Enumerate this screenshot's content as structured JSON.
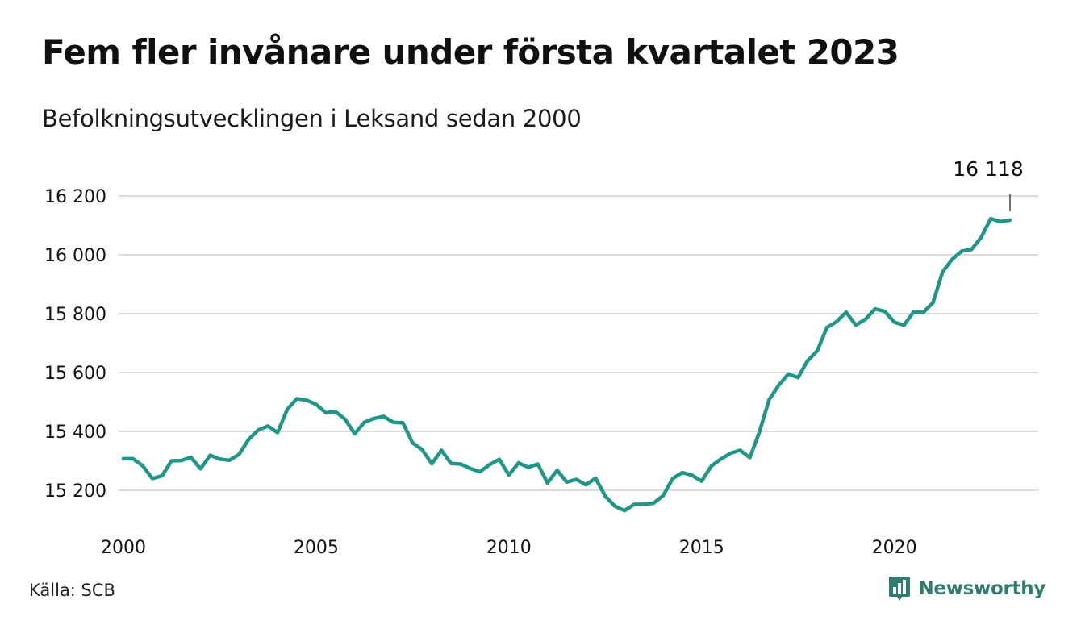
{
  "header": {
    "title": "Fem fler invånare under första kvartalet 2023",
    "subtitle": "Befolkningsutvecklingen i Leksand sedan 2000"
  },
  "footer": {
    "source": "Källa: SCB",
    "brand": "Newsworthy",
    "brand_icon": "bar-chart-speech-bubble-icon"
  },
  "colors": {
    "line": "#1f9688",
    "grid": "#dcdcdc",
    "brand": "#2e7d6e"
  },
  "chart_data": {
    "type": "line",
    "title": "Fem fler invånare under första kvartalet 2023",
    "subtitle": "Befolkningsutvecklingen i Leksand sedan 2000",
    "xlabel": "",
    "ylabel": "",
    "x_ticks": [
      2000,
      2005,
      2010,
      2015,
      2020
    ],
    "y_ticks": [
      15200,
      15400,
      15600,
      15800,
      16000,
      16200
    ],
    "y_tick_labels": [
      "15 200",
      "15 400",
      "15 600",
      "15 800",
      "16 000",
      "16 200"
    ],
    "x_tick_labels": [
      "2000",
      "2005",
      "2010",
      "2015",
      "2020"
    ],
    "xlim": [
      2000,
      2023.5
    ],
    "ylim": [
      15120,
      16230
    ],
    "grid": true,
    "legend": "none",
    "annotation": {
      "x": 2023.0,
      "value": 16118,
      "label": "16 118"
    },
    "series": [
      {
        "x": [
          2000.0,
          2000.25,
          2000.5,
          2000.75,
          2001.0,
          2001.25,
          2001.5,
          2001.75,
          2002.0,
          2002.25,
          2002.5,
          2002.75,
          2003.0,
          2003.25,
          2003.5,
          2003.75,
          2004.0,
          2004.25,
          2004.5,
          2004.75,
          2005.0,
          2005.25,
          2005.5,
          2005.75,
          2006.0,
          2006.25,
          2006.5,
          2006.75,
          2007.0,
          2007.25,
          2007.5,
          2007.75,
          2008.0,
          2008.25,
          2008.5,
          2008.75,
          2009.0,
          2009.25,
          2009.5,
          2009.75,
          2010.0,
          2010.25,
          2010.5,
          2010.75,
          2011.0,
          2011.25,
          2011.5,
          2011.75,
          2012.0,
          2012.25,
          2012.5,
          2012.75,
          2013.0,
          2013.25,
          2013.5,
          2013.75,
          2014.0,
          2014.25,
          2014.5,
          2014.75,
          2015.0,
          2015.25,
          2015.5,
          2015.75,
          2016.0,
          2016.25,
          2016.5,
          2016.75,
          2017.0,
          2017.25,
          2017.5,
          2017.75,
          2018.0,
          2018.25,
          2018.5,
          2018.75,
          2019.0,
          2019.25,
          2019.5,
          2019.75,
          2020.0,
          2020.25,
          2020.5,
          2020.75,
          2021.0,
          2021.25,
          2021.5,
          2021.75,
          2022.0,
          2022.25,
          2022.5,
          2022.75,
          2023.0
        ],
        "values": [
          15307,
          15307,
          15283,
          15240,
          15249,
          15300,
          15301,
          15312,
          15273,
          15319,
          15306,
          15302,
          15322,
          15373,
          15405,
          15418,
          15396,
          15475,
          15511,
          15506,
          15492,
          15463,
          15468,
          15441,
          15392,
          15431,
          15444,
          15451,
          15431,
          15429,
          15361,
          15338,
          15290,
          15336,
          15291,
          15289,
          15274,
          15263,
          15287,
          15305,
          15252,
          15293,
          15278,
          15289,
          15225,
          15268,
          15228,
          15237,
          15219,
          15241,
          15180,
          15146,
          15131,
          15152,
          15153,
          15156,
          15182,
          15240,
          15260,
          15251,
          15231,
          15282,
          15306,
          15326,
          15336,
          15311,
          15398,
          15508,
          15557,
          15595,
          15583,
          15640,
          15674,
          15753,
          15773,
          15805,
          15761,
          15781,
          15816,
          15808,
          15771,
          15761,
          15806,
          15804,
          15837,
          15942,
          15985,
          16013,
          16018,
          16059,
          16123,
          16113,
          16118
        ]
      }
    ]
  }
}
